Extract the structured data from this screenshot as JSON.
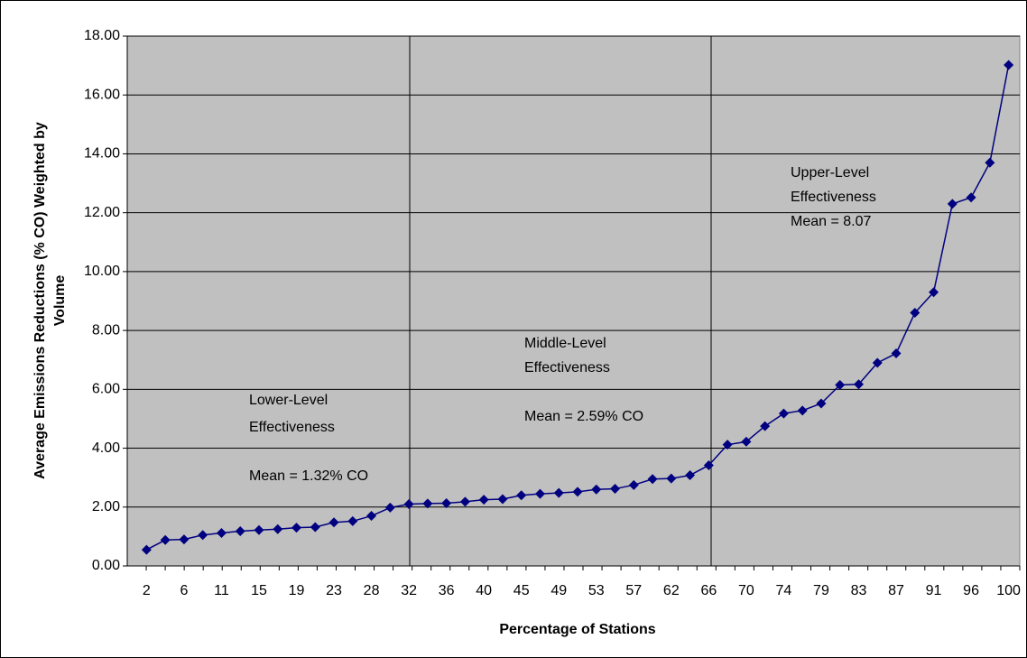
{
  "chart_data": {
    "type": "line",
    "ylabel": [
      "Average Emissions Reductions (% CO) Weighted by",
      "Volume"
    ],
    "xlabel": "Percentage of Stations",
    "categories": [
      2,
      null,
      6,
      null,
      11,
      null,
      15,
      null,
      19,
      null,
      23,
      null,
      28,
      null,
      32,
      null,
      36,
      null,
      40,
      null,
      45,
      null,
      49,
      null,
      53,
      null,
      57,
      null,
      62,
      null,
      66,
      null,
      70,
      null,
      74,
      null,
      79,
      null,
      83,
      null,
      87,
      null,
      91,
      null,
      96,
      null,
      100
    ],
    "values": [
      0.55,
      0.88,
      0.9,
      1.05,
      1.12,
      1.18,
      1.22,
      1.25,
      1.3,
      1.32,
      1.48,
      1.52,
      1.7,
      1.98,
      2.1,
      2.12,
      2.13,
      2.18,
      2.25,
      2.27,
      2.4,
      2.45,
      2.48,
      2.52,
      2.6,
      2.62,
      2.75,
      2.95,
      2.97,
      3.08,
      3.42,
      4.12,
      4.22,
      4.75,
      5.18,
      5.28,
      5.52,
      6.15,
      6.17,
      6.9,
      7.22,
      8.6,
      9.3,
      12.3,
      12.52,
      13.7,
      17.02
    ],
    "color": "#000080",
    "ylim": [
      0,
      18
    ],
    "yticks": [
      {
        "value": 0,
        "label": "0.00"
      },
      {
        "value": 2,
        "label": "2.00"
      },
      {
        "value": 4,
        "label": "4.00"
      },
      {
        "value": 6,
        "label": "6.00"
      },
      {
        "value": 8,
        "label": "8.00"
      },
      {
        "value": 10,
        "label": "10.00"
      },
      {
        "value": 12,
        "label": "12.00"
      },
      {
        "value": 14,
        "label": "14.00"
      },
      {
        "value": 16,
        "label": "16.00"
      },
      {
        "value": 18,
        "label": "18.00"
      }
    ],
    "grid": true,
    "annotations": [
      {
        "lines": [
          "Lower-Level",
          "Effectiveness"
        ]
      },
      {
        "lines": [
          "Mean = 1.32% CO"
        ]
      },
      {
        "lines": [
          "Middle-Level",
          "Effectiveness"
        ]
      },
      {
        "lines": [
          "Mean = 2.59% CO"
        ]
      },
      {
        "lines": [
          "Upper-Level",
          "Effectiveness",
          "Mean = 8.07"
        ]
      }
    ]
  }
}
